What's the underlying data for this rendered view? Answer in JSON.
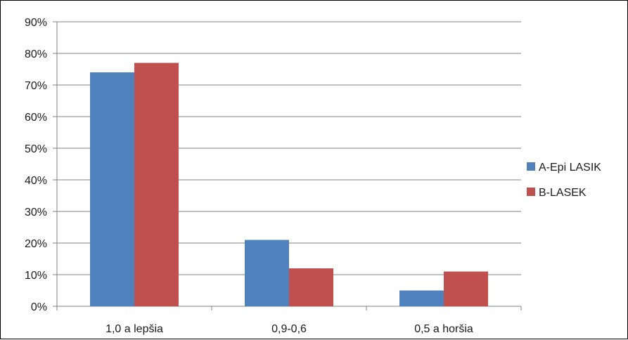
{
  "chart_data": {
    "type": "bar",
    "categories": [
      "1,0 a lepšia",
      "0,9-0,6",
      "0,5 a horšia"
    ],
    "series": [
      {
        "name": "A-Epi LASIK",
        "values": [
          74,
          21,
          5
        ],
        "color": "#4F81BD"
      },
      {
        "name": "B-LASEK",
        "values": [
          77,
          12,
          11
        ],
        "color": "#C0504D"
      }
    ],
    "ylim": [
      0,
      90
    ],
    "yticks": [
      0,
      10,
      20,
      30,
      40,
      50,
      60,
      70,
      80,
      90
    ],
    "ytick_format": "%",
    "grid": true,
    "legend_position": "right"
  }
}
